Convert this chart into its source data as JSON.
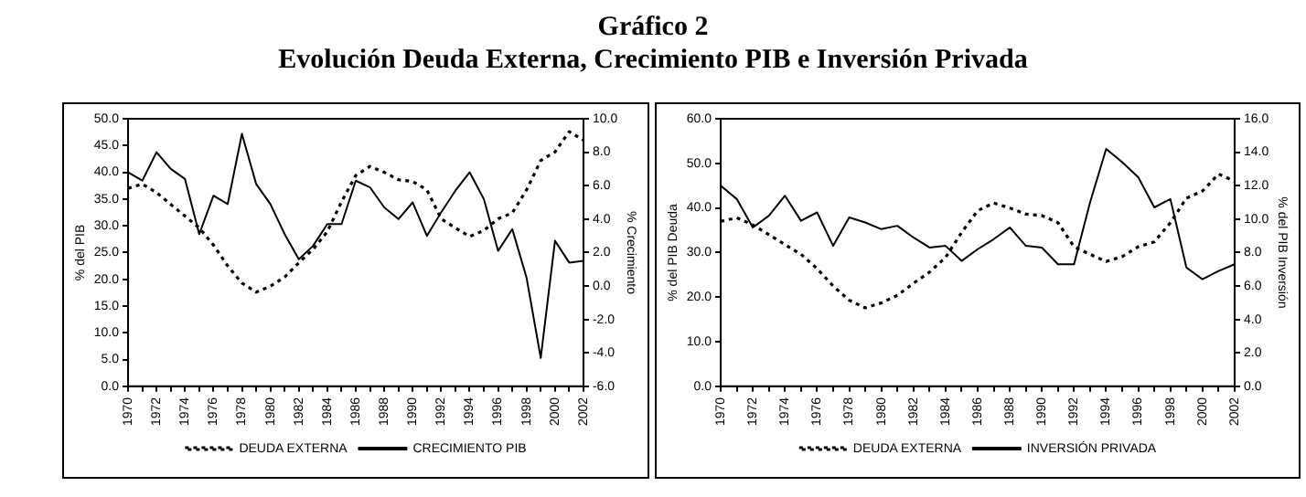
{
  "chart_data": [
    {
      "type": "line",
      "title": "Gráfico 2",
      "subtitle": "Evolución Deuda Externa, Crecimiento PIB e Inversión Privada",
      "ylabel": "% del PIB",
      "y2label": "% Crecimiento",
      "categories": [
        "1970",
        null,
        "1972",
        null,
        "1974",
        null,
        "1976",
        null,
        "1978",
        null,
        "1980",
        null,
        "1982",
        null,
        "1984",
        null,
        "1986",
        null,
        "1988",
        null,
        "1990",
        null,
        "1992",
        null,
        "1994",
        null,
        "1996",
        null,
        "1998",
        null,
        "2000",
        null,
        "2002"
      ],
      "series": [
        {
          "name": "DEUDA EXTERNA",
          "color": "#000000",
          "line_style": "dotted",
          "values": [
            37.0,
            37.8,
            36.2,
            34.0,
            31.8,
            29.6,
            26.4,
            22.5,
            19.3,
            17.6,
            18.7,
            20.4,
            23.1,
            25.6,
            28.9,
            34.5,
            39.4,
            41.1,
            40.0,
            38.6,
            38.3,
            36.7,
            31.3,
            29.6,
            28.0,
            29.1,
            31.3,
            32.4,
            36.7,
            42.2,
            43.8,
            47.6,
            46.0
          ]
        },
        {
          "name": "CRECIMIENTO PIB",
          "color": "#000000",
          "line_style": "solid",
          "axis": "y2",
          "values": [
            6.8,
            6.3,
            8.0,
            7.0,
            6.4,
            3.1,
            5.4,
            4.9,
            9.1,
            6.1,
            4.9,
            3.1,
            1.6,
            2.4,
            3.7,
            3.7,
            6.3,
            5.9,
            4.7,
            4.0,
            5.0,
            3.0,
            4.4,
            5.7,
            6.8,
            5.2,
            2.1,
            3.4,
            0.5,
            -4.3,
            2.7,
            1.4,
            1.5
          ]
        }
      ],
      "ylim": [
        0,
        50
      ],
      "yticks": [
        {
          "value": 0,
          "label": "0.0"
        },
        {
          "value": 5,
          "label": "5.0"
        },
        {
          "value": 10,
          "label": "10.0"
        },
        {
          "value": 15,
          "label": "15.0"
        },
        {
          "value": 20,
          "label": "20.0"
        },
        {
          "value": 25,
          "label": "25.0"
        },
        {
          "value": 30,
          "label": "30.0"
        },
        {
          "value": 35,
          "label": "35.0"
        },
        {
          "value": 40,
          "label": "40.0"
        },
        {
          "value": 45,
          "label": "45.0"
        },
        {
          "value": 50,
          "label": "50.0"
        }
      ],
      "y2lim": [
        -6,
        10
      ],
      "y2ticks": [
        {
          "value": -6,
          "label": "-6.0"
        },
        {
          "value": -4,
          "label": "-4.0"
        },
        {
          "value": -2,
          "label": "-2.0"
        },
        {
          "value": 0,
          "label": "0.0"
        },
        {
          "value": 2,
          "label": "2.0"
        },
        {
          "value": 4,
          "label": "4.0"
        },
        {
          "value": 6,
          "label": "6.0"
        },
        {
          "value": 8,
          "label": "8.0"
        },
        {
          "value": 10,
          "label": "10.0"
        }
      ],
      "grid": false,
      "legend": "bottom"
    },
    {
      "type": "line",
      "ylabel": "% del PIB Deuda",
      "y2label": "% del PIB Inversión",
      "categories": [
        "1970",
        null,
        "1972",
        null,
        "1974",
        null,
        "1976",
        null,
        "1978",
        null,
        "1980",
        null,
        "1982",
        null,
        "1984",
        null,
        "1986",
        null,
        "1988",
        null,
        "1990",
        null,
        "1992",
        null,
        "1994",
        null,
        "1996",
        null,
        "1998",
        null,
        "2000",
        null,
        "2002"
      ],
      "series": [
        {
          "name": "DEUDA EXTERNA",
          "color": "#000000",
          "line_style": "dotted",
          "values": [
            37.0,
            37.8,
            36.2,
            34.0,
            31.8,
            29.6,
            26.4,
            22.5,
            19.3,
            17.6,
            18.7,
            20.4,
            23.1,
            25.6,
            28.9,
            34.5,
            39.4,
            41.1,
            40.0,
            38.6,
            38.3,
            36.7,
            31.3,
            29.6,
            28.0,
            29.1,
            31.3,
            32.4,
            36.7,
            42.2,
            43.8,
            47.6,
            46.0
          ]
        },
        {
          "name": "INVERSIÓN PRIVADA",
          "color": "#000000",
          "line_style": "solid",
          "axis": "y2",
          "values": [
            12.0,
            11.2,
            9.5,
            10.2,
            11.4,
            9.9,
            10.4,
            8.4,
            10.1,
            9.8,
            9.4,
            9.6,
            8.9,
            8.3,
            8.4,
            7.5,
            8.2,
            8.8,
            9.5,
            8.4,
            8.3,
            7.3,
            7.3,
            11.0,
            14.2,
            13.4,
            12.5,
            10.7,
            11.2,
            7.1,
            6.4,
            6.9,
            7.3
          ]
        }
      ],
      "ylim": [
        0,
        60
      ],
      "yticks": [
        {
          "value": 0,
          "label": "0.0"
        },
        {
          "value": 10,
          "label": "10.0"
        },
        {
          "value": 20,
          "label": "20.0"
        },
        {
          "value": 30,
          "label": "30.0"
        },
        {
          "value": 40,
          "label": "40.0"
        },
        {
          "value": 50,
          "label": "50.0"
        },
        {
          "value": 60,
          "label": "60.0"
        }
      ],
      "y2lim": [
        0,
        16
      ],
      "y2ticks": [
        {
          "value": 0,
          "label": "0.0"
        },
        {
          "value": 2,
          "label": "2.0"
        },
        {
          "value": 4,
          "label": "4.0"
        },
        {
          "value": 6,
          "label": "6.0"
        },
        {
          "value": 8,
          "label": "8.0"
        },
        {
          "value": 10,
          "label": "10.0"
        },
        {
          "value": 12,
          "label": "12.0"
        },
        {
          "value": 14,
          "label": "14.0"
        },
        {
          "value": 16,
          "label": "16.0"
        }
      ],
      "grid": false,
      "legend": "bottom"
    }
  ]
}
